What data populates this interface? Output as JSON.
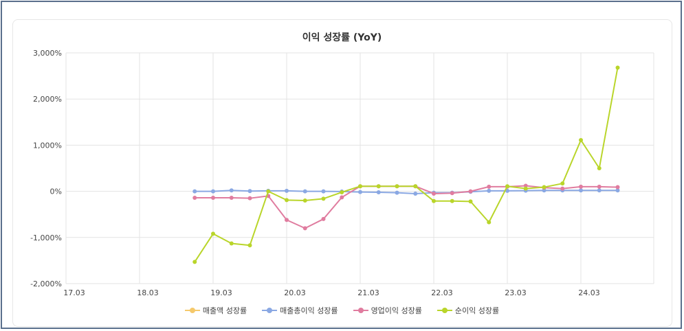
{
  "chart_data": {
    "type": "line",
    "title": "이익 성장률 (YoY)",
    "xlabel": "",
    "ylabel": "",
    "ylim": [
      -2000,
      3000
    ],
    "y_ticks": [
      "3,000%",
      "2,000%",
      "1,000%",
      "0%",
      "-1,000%",
      "-2,000%"
    ],
    "y_tick_values": [
      3000,
      2000,
      1000,
      0,
      -1000,
      -2000
    ],
    "x_tick_labels": [
      "17.03",
      "18.03",
      "19.03",
      "20.03",
      "21.03",
      "22.03",
      "23.03",
      "24.03"
    ],
    "x": [
      "18.12",
      "19.03",
      "19.06",
      "19.09",
      "19.12",
      "20.03",
      "20.06",
      "20.09",
      "20.12",
      "21.03",
      "21.06",
      "21.09",
      "21.12",
      "22.03",
      "22.06",
      "22.09",
      "22.12",
      "23.03",
      "23.06",
      "23.09",
      "23.12",
      "24.03",
      "24.06",
      "24.09"
    ],
    "grid": true,
    "legend_position": "bottom",
    "series": [
      {
        "name": "매출액 성장률",
        "color": "#f5c96b",
        "values": [
          null,
          null,
          null,
          null,
          null,
          null,
          null,
          null,
          null,
          null,
          null,
          null,
          null,
          null,
          null,
          null,
          null,
          null,
          null,
          null,
          null,
          null,
          null,
          null
        ]
      },
      {
        "name": "매출총이익 성장률",
        "color": "#8aa8e3",
        "values": [
          0,
          0,
          20,
          5,
          10,
          10,
          0,
          0,
          -5,
          -15,
          -20,
          -30,
          -50,
          -30,
          -30,
          -10,
          10,
          10,
          15,
          20,
          20,
          20,
          20,
          20
        ]
      },
      {
        "name": "영업이익 성장률",
        "color": "#e07c9f",
        "values": [
          -140,
          -140,
          -140,
          -150,
          -100,
          -620,
          -800,
          -600,
          -130,
          110,
          110,
          110,
          110,
          -50,
          -40,
          0,
          100,
          100,
          120,
          80,
          60,
          100,
          100,
          90
        ]
      },
      {
        "name": "순이익 성장률",
        "color": "#b9d52a",
        "values": [
          -1530,
          -920,
          -1130,
          -1170,
          0,
          -190,
          -200,
          -160,
          -20,
          110,
          110,
          110,
          110,
          -210,
          -210,
          -220,
          -670,
          110,
          60,
          90,
          170,
          1110,
          500,
          2680
        ]
      }
    ]
  }
}
